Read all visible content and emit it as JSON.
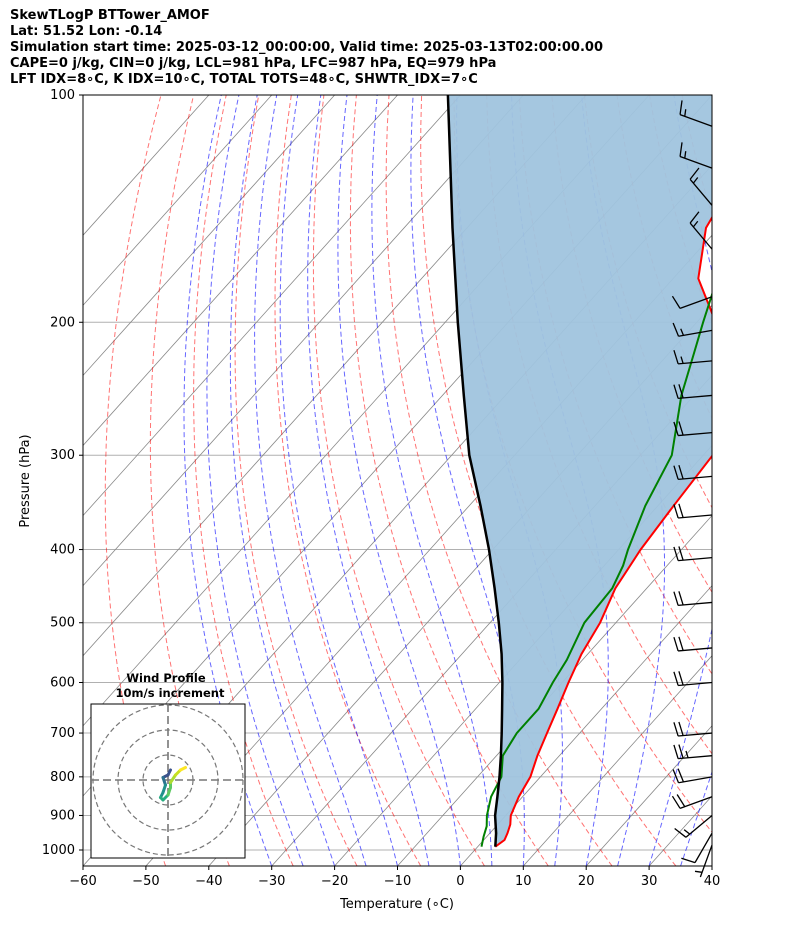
{
  "header": {
    "line1": "SkewTLogP BTTower_AMOF",
    "line2": "Lat: 51.52   Lon: -0.14",
    "line3": "Simulation start time: 2025-03-12_00:00:00, Valid time: 2025-03-13T02:00:00.00",
    "line4": "CAPE=0 j/kg, CIN=0 j/kg, LCL=981 hPa, LFC=987 hPa, EQ=979 hPa",
    "line5": "LFT IDX=8∘C, K IDX=10∘C, TOTAL TOTS=48∘C, SHWTR_IDX=7∘C"
  },
  "chart_data": {
    "type": "line",
    "subtype": "skew-t log-p",
    "xlabel": "Temperature (∘C)",
    "ylabel": "Pressure (hPa)",
    "xlim": [
      -60,
      40
    ],
    "ylim": [
      1050,
      100
    ],
    "y_scale": "log",
    "x_ticks": [
      "−60",
      "−50",
      "−40",
      "−30",
      "−20",
      "−10",
      "0",
      "10",
      "20",
      "30",
      "40"
    ],
    "y_ticks": [
      "100",
      "200",
      "300",
      "400",
      "500",
      "600",
      "700",
      "800",
      "900",
      "1000"
    ],
    "grid": true,
    "colors": {
      "temperature": "#ff0000",
      "dewpoint": "#008000",
      "parcel": "#000000",
      "shading": "#a0c4de",
      "dry_adiabats": "#ff0000",
      "moist_adiabats": "#0000ff",
      "isotherms": "#888888",
      "grid": "#b0b0b0"
    },
    "series": [
      {
        "key": "temperature",
        "pressure": [
          990,
          970,
          950,
          925,
          900,
          850,
          800,
          750,
          700,
          650,
          600,
          550,
          500,
          450,
          400,
          350,
          300,
          275,
          250,
          225,
          200,
          175,
          150,
          125,
          100
        ],
        "values": [
          2.8,
          3.3,
          2.8,
          2.0,
          0.8,
          -0.6,
          -1.6,
          -3.5,
          -5.2,
          -7.0,
          -9.0,
          -11.0,
          -12.5,
          -15.0,
          -16.5,
          -17.5,
          -18.5,
          -20.5,
          -24.0,
          -29.5,
          -37.0,
          -46.0,
          -52.0,
          -55.0,
          -58.0
        ]
      },
      {
        "key": "dewpoint",
        "pressure": [
          990,
          960,
          930,
          900,
          850,
          800,
          750,
          700,
          650,
          600,
          560,
          500,
          450,
          420,
          400,
          350,
          300,
          250,
          220,
          200,
          175,
          150,
          125,
          100
        ],
        "values": [
          0.6,
          -0.5,
          -1.5,
          -3.0,
          -5.0,
          -6.2,
          -9.0,
          -10.0,
          -10.0,
          -11.5,
          -12.5,
          -15.0,
          -15.5,
          -17.0,
          -18.5,
          -22.0,
          -25.0,
          -32.0,
          -36.0,
          -39.0,
          -43.0,
          -47.0,
          -55.0,
          -63.0
        ]
      },
      {
        "key": "parcel",
        "pressure": [
          990,
          950,
          900,
          850,
          800,
          750,
          700,
          650,
          600,
          550,
          500,
          450,
          400,
          350,
          300,
          250,
          200,
          150,
          100
        ],
        "values": [
          2.8,
          1.0,
          -1.7,
          -4.0,
          -6.5,
          -9.3,
          -12.4,
          -15.8,
          -19.5,
          -23.7,
          -28.6,
          -34.2,
          -40.6,
          -48.2,
          -57.2,
          -66.6,
          -78.0,
          -92.3,
          -112.0
        ]
      }
    ],
    "wind_barbs": [
      {
        "pressure": 985,
        "speed_kt": 5,
        "dir": 200
      },
      {
        "pressure": 950,
        "speed_kt": 10,
        "dir": 210
      },
      {
        "pressure": 900,
        "speed_kt": 15,
        "dir": 230
      },
      {
        "pressure": 850,
        "speed_kt": 20,
        "dir": 250
      },
      {
        "pressure": 800,
        "speed_kt": 20,
        "dir": 260
      },
      {
        "pressure": 750,
        "speed_kt": 25,
        "dir": 265
      },
      {
        "pressure": 700,
        "speed_kt": 20,
        "dir": 265
      },
      {
        "pressure": 600,
        "speed_kt": 20,
        "dir": 265
      },
      {
        "pressure": 540,
        "speed_kt": 20,
        "dir": 265
      },
      {
        "pressure": 470,
        "speed_kt": 20,
        "dir": 265
      },
      {
        "pressure": 410,
        "speed_kt": 20,
        "dir": 265
      },
      {
        "pressure": 360,
        "speed_kt": 20,
        "dir": 265
      },
      {
        "pressure": 320,
        "speed_kt": 20,
        "dir": 265
      },
      {
        "pressure": 280,
        "speed_kt": 20,
        "dir": 265
      },
      {
        "pressure": 250,
        "speed_kt": 20,
        "dir": 265
      },
      {
        "pressure": 225,
        "speed_kt": 15,
        "dir": 265
      },
      {
        "pressure": 205,
        "speed_kt": 15,
        "dir": 260
      },
      {
        "pressure": 185,
        "speed_kt": 10,
        "dir": 250
      },
      {
        "pressure": 160,
        "speed_kt": 15,
        "dir": 320
      },
      {
        "pressure": 140,
        "speed_kt": 15,
        "dir": 320
      },
      {
        "pressure": 125,
        "speed_kt": 15,
        "dir": 290
      },
      {
        "pressure": 110,
        "speed_kt": 15,
        "dir": 290
      }
    ],
    "inset": {
      "title": "Wind Profile",
      "subtitle": "10m/s increment",
      "rings_ms": [
        10,
        20,
        30
      ],
      "hodograph": [
        {
          "u": 1,
          "v": 4,
          "c": "#3b0f70"
        },
        {
          "u": 0,
          "v": 2,
          "c": "#3b528b"
        },
        {
          "u": -2,
          "v": 1,
          "c": "#3b528b"
        },
        {
          "u": -1,
          "v": -2,
          "c": "#2c728e"
        },
        {
          "u": -2,
          "v": -5,
          "c": "#21918c"
        },
        {
          "u": -3,
          "v": -7,
          "c": "#21918c"
        },
        {
          "u": -2,
          "v": -8,
          "c": "#28ae80"
        },
        {
          "u": 0,
          "v": -6,
          "c": "#28ae80"
        },
        {
          "u": 1,
          "v": -3,
          "c": "#5ec962"
        },
        {
          "u": 1,
          "v": -1,
          "c": "#5ec962"
        },
        {
          "u": 3,
          "v": 2,
          "c": "#addc30"
        },
        {
          "u": 5,
          "v": 4,
          "c": "#c8e020"
        },
        {
          "u": 7,
          "v": 5,
          "c": "#fde725"
        }
      ]
    }
  }
}
